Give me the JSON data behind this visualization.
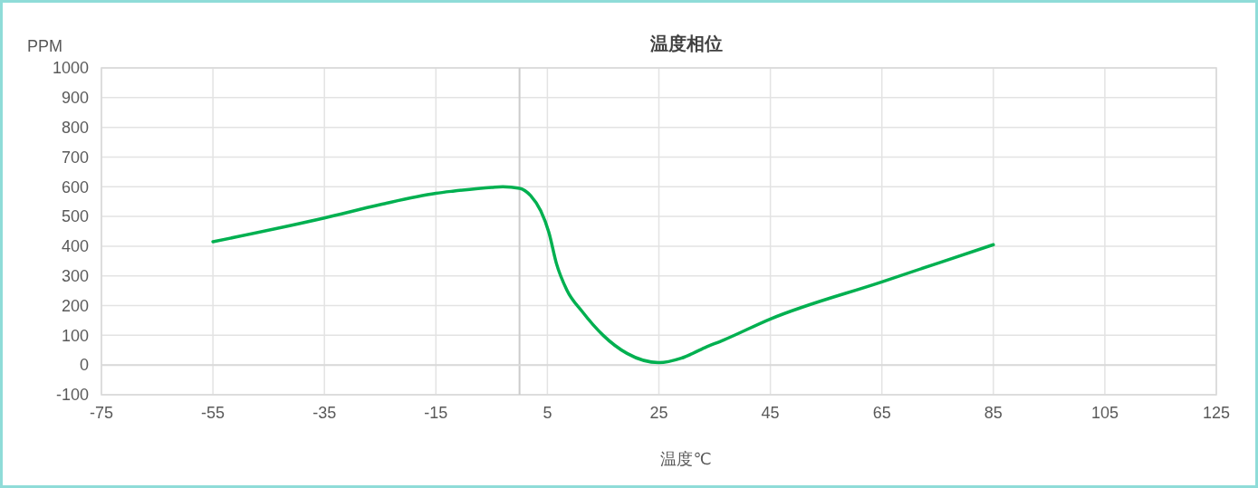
{
  "chart_data": {
    "type": "line",
    "title": "温度相位",
    "xlabel": "温度℃",
    "ylabel": "PPM",
    "xlim": [
      -75,
      125
    ],
    "xticks": [
      -75,
      -55,
      -35,
      -15,
      5,
      25,
      45,
      65,
      85,
      105,
      125
    ],
    "ylim": [
      -100,
      1000
    ],
    "yticks": [
      -100,
      0,
      100,
      200,
      300,
      400,
      500,
      600,
      700,
      800,
      900,
      1000
    ],
    "grid": true,
    "marker": "none",
    "line_style": "solid",
    "ref_lines": [
      {
        "axis": "x",
        "value": 0,
        "color": "#cccccc"
      },
      {
        "axis": "y",
        "value": 0,
        "color": "#d9d9d9"
      }
    ],
    "series": [
      {
        "color": "#00b050",
        "x": [
          -55,
          -35,
          -25,
          -15,
          -12,
          -5,
          -3,
          0,
          2,
          3.8,
          5.3,
          6.6,
          8.5,
          11.2,
          15,
          19.3,
          25,
          29,
          33.3,
          36.6,
          45,
          65,
          85
        ],
        "values": [
          415,
          495,
          540,
          578,
          585,
          598,
          600,
          595,
          570,
          519,
          444,
          343,
          252,
          181,
          100,
          39,
          8,
          23,
          59,
          84,
          155,
          280,
          405
        ]
      }
    ]
  }
}
